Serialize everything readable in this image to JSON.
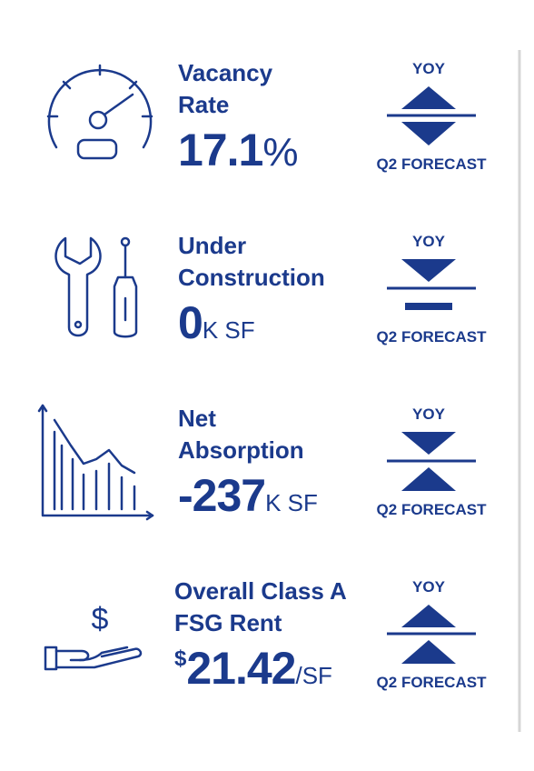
{
  "metrics": [
    {
      "label": [
        "Vacancy",
        "Rate"
      ],
      "value": "17.1",
      "unit": "%",
      "yoy": {
        "label": "YOY",
        "direction": "up"
      },
      "forecast": {
        "label": "Q2 FORECAST",
        "direction": "down"
      }
    },
    {
      "label": [
        "Under",
        "Construction"
      ],
      "value": "0",
      "unit": "K SF",
      "yoy": {
        "label": "YOY",
        "direction": "down"
      },
      "forecast": {
        "label": "Q2 FORECAST",
        "direction": "flat"
      }
    },
    {
      "label": [
        "Net",
        "Absorption"
      ],
      "value": "-237",
      "unit": "K SF",
      "yoy": {
        "label": "YOY",
        "direction": "down"
      },
      "forecast": {
        "label": "Q2 FORECAST",
        "direction": "up"
      }
    },
    {
      "label": [
        "Overall Class A",
        "FSG Rent"
      ],
      "prefix": "$",
      "value": "21.42",
      "unit": "/SF",
      "yoy": {
        "label": "YOY",
        "direction": "up"
      },
      "forecast": {
        "label": "Q2 FORECAST",
        "direction": "up"
      }
    }
  ]
}
